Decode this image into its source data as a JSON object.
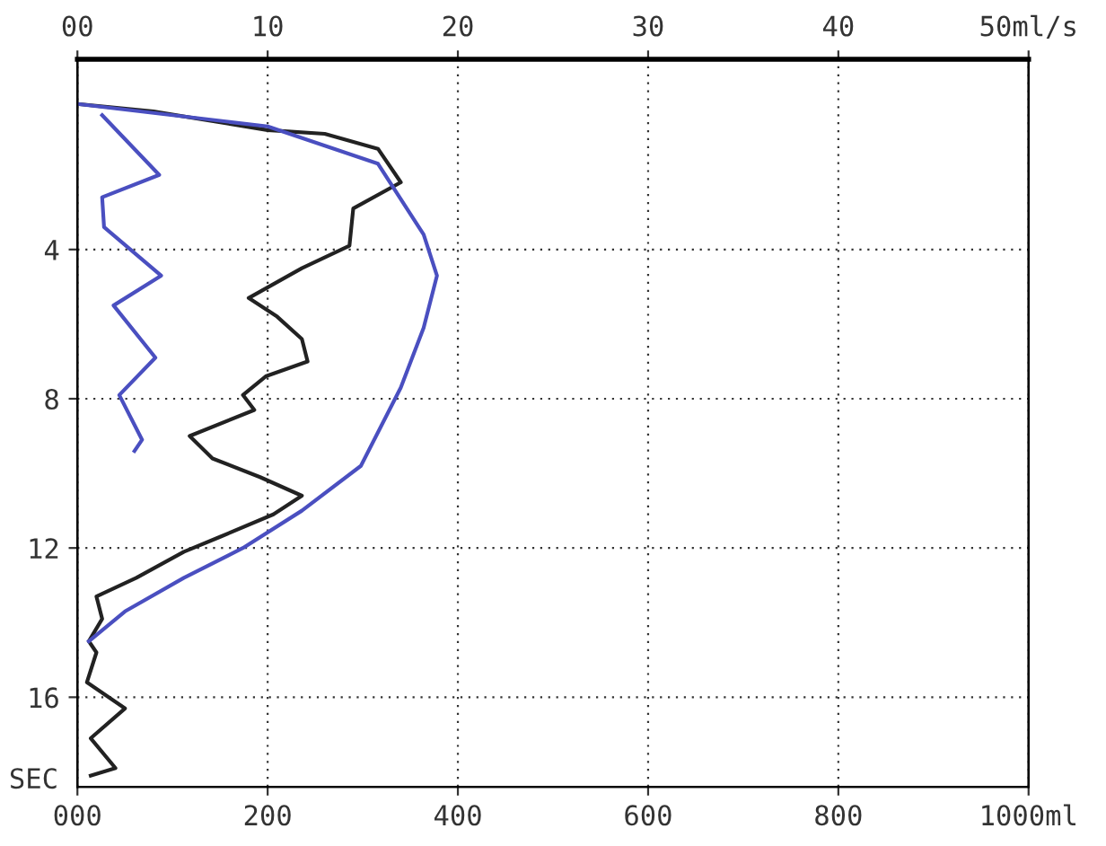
{
  "chart_data": {
    "type": "line",
    "ylabel": "SEC",
    "xlim": [
      0,
      1000
    ],
    "xticks": [
      {
        "value": 0,
        "label": "000"
      },
      200,
      400,
      600,
      800,
      {
        "value": 1000,
        "label": "1000ml"
      }
    ],
    "x2lim": [
      0,
      50
    ],
    "x2ticks": [
      {
        "value": 0,
        "label": "00"
      },
      10,
      20,
      30,
      40,
      {
        "value": 50,
        "label": "50ml/s"
      }
    ],
    "ylim": [
      18.4,
      -1.1
    ],
    "yticks": [
      4,
      8,
      12,
      16
    ],
    "grid": true,
    "line_style": "solid",
    "marker": "none",
    "series": [
      {
        "axis": "x2",
        "color": "#222222",
        "x": [
          0,
          4,
          10,
          13,
          15.8,
          17,
          14.5,
          14.3,
          11.8,
          9,
          10.5,
          11.8,
          12.1,
          9.9,
          8.7,
          9.3,
          5.9,
          7.1,
          9.6,
          11.8,
          10.3,
          7.5,
          5.6,
          3.1,
          1,
          1.3,
          0.6,
          1,
          0.5,
          2.5,
          0.7,
          2,
          0.7
        ],
        "values": [
          0.1,
          0.3,
          0.8,
          0.9,
          1.3,
          2.2,
          2.9,
          3.9,
          4.5,
          5.3,
          5.8,
          6.4,
          7.0,
          7.4,
          7.9,
          8.3,
          9.0,
          9.6,
          10.1,
          10.6,
          11.1,
          11.7,
          12.1,
          12.8,
          13.3,
          13.9,
          14.5,
          14.8,
          15.6,
          16.3,
          17.1,
          17.9,
          18.1
        ]
      },
      {
        "axis": "x2",
        "color": "#4a4fc0",
        "x": [
          0,
          10,
          15.8,
          18.2,
          18.9,
          18.2,
          17,
          14.9,
          11.8,
          8.7,
          5.6,
          2.5,
          0.6
        ],
        "values": [
          0.1,
          0.7,
          1.7,
          3.6,
          4.7,
          6.1,
          7.7,
          9.8,
          11.0,
          12.0,
          12.8,
          13.7,
          14.5
        ]
      },
      {
        "axis": "x2",
        "color": "#4a4fc0",
        "x": [
          1.3,
          4.3,
          1.3,
          1.4,
          4.4,
          1.9,
          4.1,
          2.2,
          3.4,
          3
        ],
        "values": [
          0.4,
          2.0,
          2.6,
          3.4,
          4.7,
          5.5,
          6.9,
          7.9,
          9.1,
          9.4
        ]
      }
    ]
  }
}
